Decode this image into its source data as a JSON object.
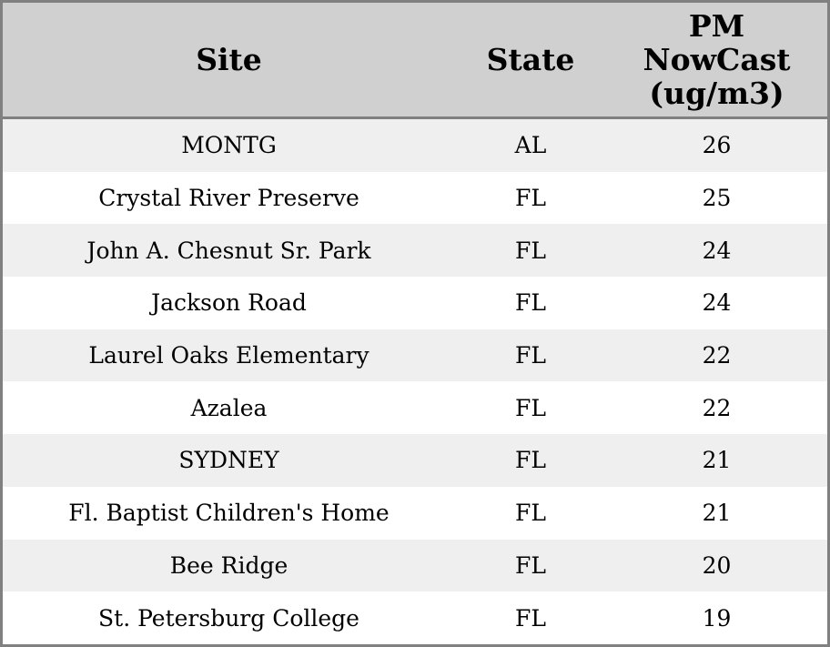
{
  "table": {
    "columns": [
      "Site",
      "State",
      "PM NowCast (ug/m3)"
    ],
    "rows": [
      [
        "MONTG",
        "AL",
        26
      ],
      [
        "Crystal River Preserve",
        "FL",
        25
      ],
      [
        "John A. Chesnut Sr. Park",
        "FL",
        24
      ],
      [
        "Jackson Road",
        "FL",
        24
      ],
      [
        "Laurel Oaks Elementary",
        "FL",
        22
      ],
      [
        "Azalea",
        "FL",
        22
      ],
      [
        "SYDNEY",
        "FL",
        21
      ],
      [
        "Fl. Baptist Children's Home",
        "FL",
        21
      ],
      [
        "Bee Ridge",
        "FL",
        20
      ],
      [
        "St. Petersburg College",
        "FL",
        19
      ]
    ]
  }
}
